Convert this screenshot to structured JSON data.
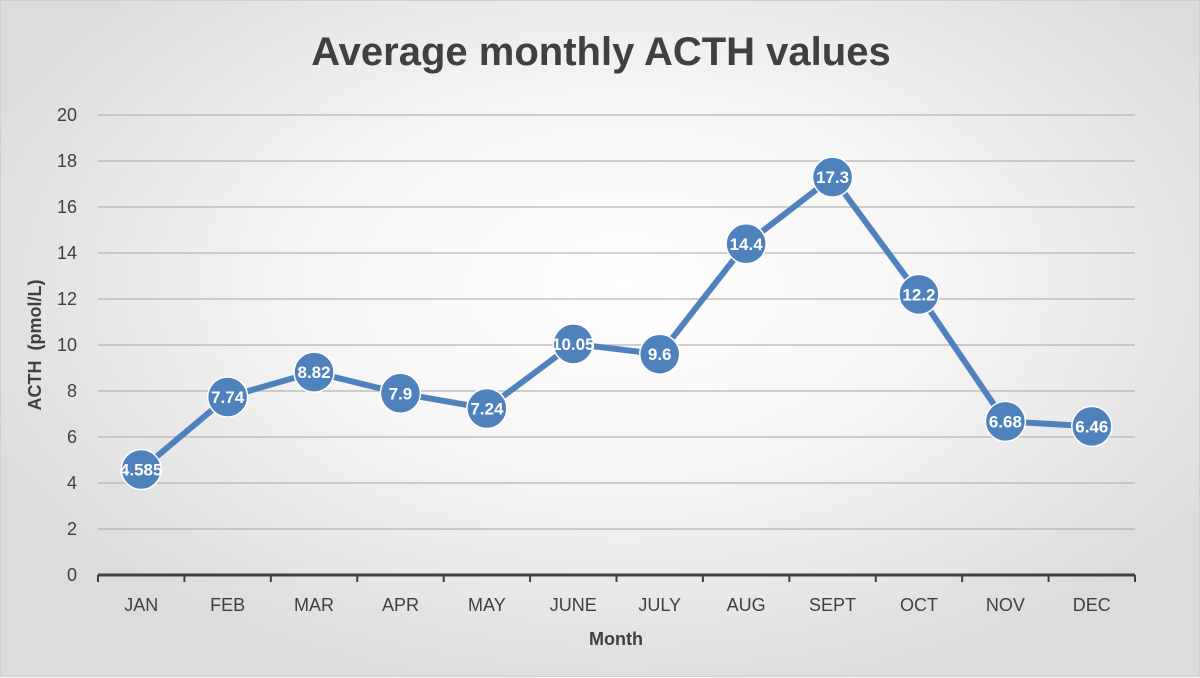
{
  "chart_data": {
    "type": "line",
    "title": "Average monthly ACTH values",
    "xlabel": "Month",
    "ylabel": "ACTH  (pmol/L)",
    "categories": [
      "JAN",
      "FEB",
      "MAR",
      "APR",
      "MAY",
      "JUNE",
      "JULY",
      "AUG",
      "SEPT",
      "OCT",
      "NOV",
      "DEC"
    ],
    "series": [
      {
        "values": [
          4.585,
          7.74,
          8.82,
          7.9,
          7.24,
          10.05,
          9.6,
          14.4,
          17.3,
          12.2,
          6.68,
          6.46
        ],
        "labels": [
          "4.585",
          "7.74",
          "8.82",
          "7.9",
          "7.24",
          "10.05",
          "9.6",
          "14.4",
          "17.3",
          "12.2",
          "6.68",
          "6.46"
        ],
        "color": "#4f81bd"
      }
    ],
    "ylim": [
      0,
      20
    ],
    "yticks": [
      0,
      2,
      4,
      6,
      8,
      10,
      12,
      14,
      16,
      18,
      20
    ],
    "grid": true,
    "legend": "none"
  }
}
